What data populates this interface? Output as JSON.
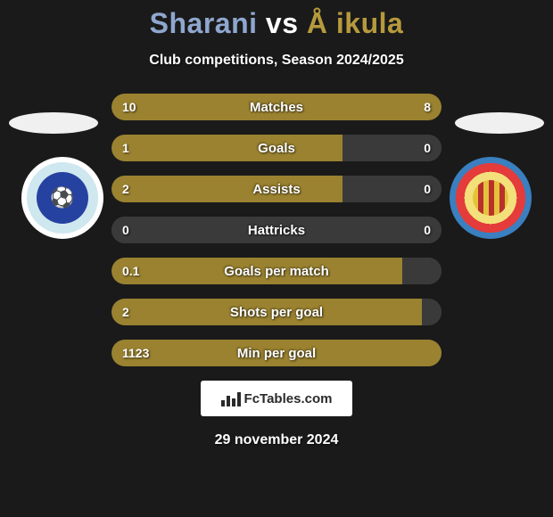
{
  "title": {
    "player1": "Sharani",
    "vs": "vs",
    "player2": "Å ikula",
    "player1_color": "#8fa7cf",
    "vs_color": "#ffffff",
    "player2_color": "#b69a3d"
  },
  "subtitle": "Club competitions, Season 2024/2025",
  "left_team_logo_text": "⚽",
  "colors": {
    "bar_bg": "#3a3a3a",
    "left_fill": "#9a8230",
    "right_fill": "#9a8230",
    "background": "#1a1a1a"
  },
  "bars": [
    {
      "label": "Matches",
      "left_val": "10",
      "right_val": "8",
      "left_pct": 56,
      "right_pct": 44
    },
    {
      "label": "Goals",
      "left_val": "1",
      "right_val": "0",
      "left_pct": 70,
      "right_pct": 0
    },
    {
      "label": "Assists",
      "left_val": "2",
      "right_val": "0",
      "left_pct": 70,
      "right_pct": 0
    },
    {
      "label": "Hattricks",
      "left_val": "0",
      "right_val": "0",
      "left_pct": 0,
      "right_pct": 0
    },
    {
      "label": "Goals per match",
      "left_val": "0.1",
      "right_val": "",
      "left_pct": 88,
      "right_pct": 0
    },
    {
      "label": "Shots per goal",
      "left_val": "2",
      "right_val": "",
      "left_pct": 94,
      "right_pct": 0
    },
    {
      "label": "Min per goal",
      "left_val": "1123",
      "right_val": "",
      "left_pct": 100,
      "right_pct": 0
    }
  ],
  "brand": "FcTables.com",
  "date": "29 november 2024"
}
